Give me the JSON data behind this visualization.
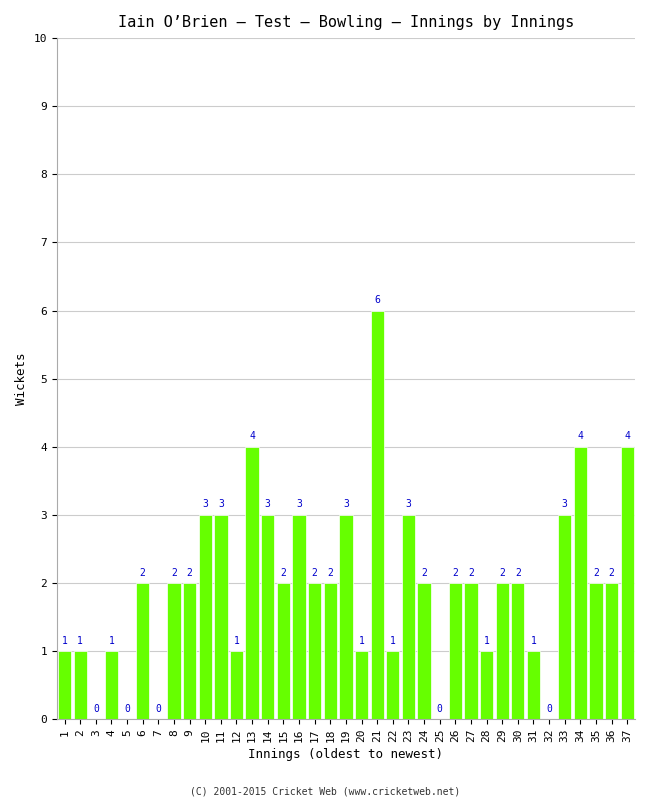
{
  "title": "Iain O’Brien – Test – Bowling – Innings by Innings",
  "xlabel": "Innings (oldest to newest)",
  "ylabel": "Wickets",
  "background_color": "#ffffff",
  "bar_color": "#66ff00",
  "label_color": "#0000cc",
  "grid_color": "#cccccc",
  "footer": "(C) 2001-2015 Cricket Web (www.cricketweb.net)",
  "ylim": [
    0,
    10
  ],
  "yticks": [
    0,
    1,
    2,
    3,
    4,
    5,
    6,
    7,
    8,
    9,
    10
  ],
  "innings": [
    1,
    2,
    3,
    4,
    5,
    6,
    7,
    8,
    9,
    10,
    11,
    12,
    13,
    14,
    15,
    16,
    17,
    18,
    19,
    20,
    21,
    22,
    23,
    24,
    25,
    26,
    27,
    28,
    29,
    30,
    31,
    32,
    33,
    34,
    35,
    36,
    37
  ],
  "wickets": [
    1,
    1,
    0,
    1,
    0,
    2,
    0,
    2,
    2,
    3,
    3,
    1,
    4,
    3,
    2,
    3,
    2,
    2,
    3,
    1,
    6,
    1,
    3,
    2,
    0,
    2,
    2,
    1,
    2,
    2,
    1,
    0,
    3,
    4,
    2,
    2,
    4
  ],
  "label_fontsize": 7,
  "tick_fontsize": 8,
  "title_fontsize": 11,
  "ylabel_fontsize": 9,
  "xlabel_fontsize": 9
}
